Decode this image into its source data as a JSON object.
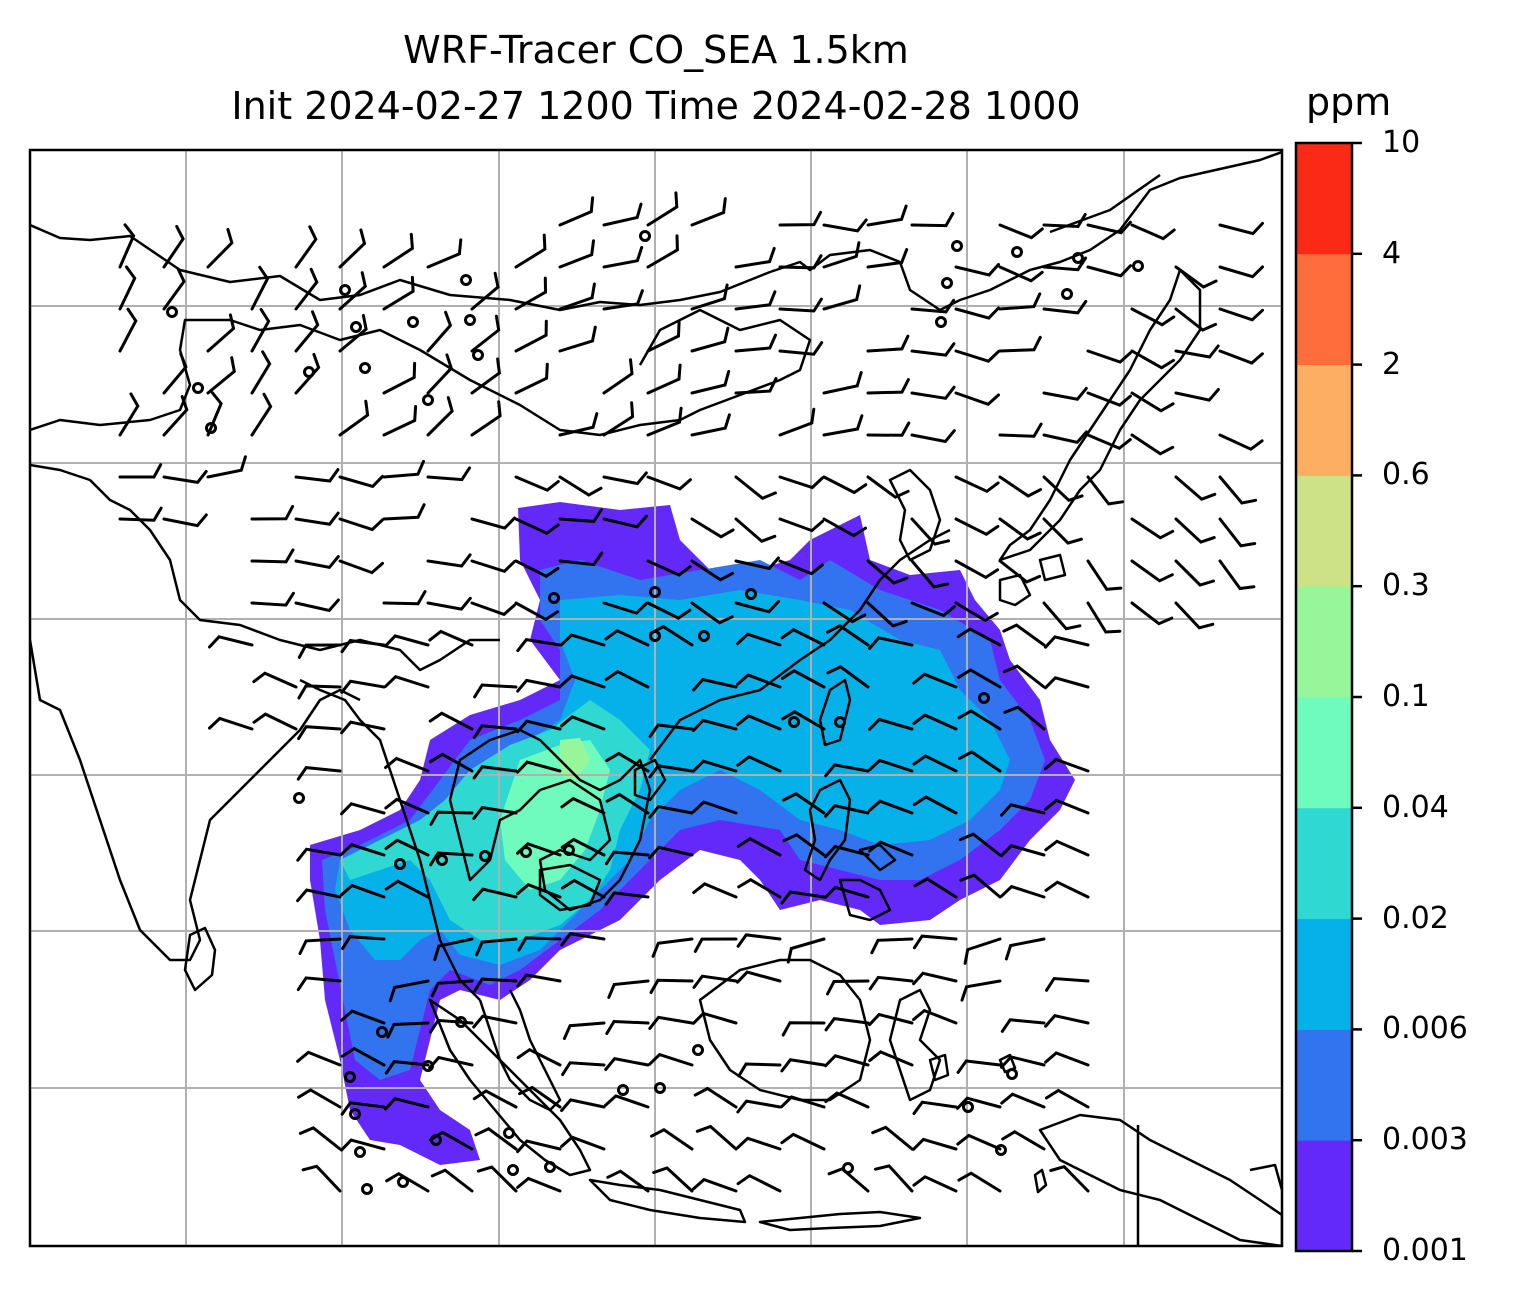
{
  "title": {
    "line1": "WRF-Tracer CO_SEA 1.5km",
    "line2": "Init 2024-02-27 1200 Time 2024-02-28 1000"
  },
  "colorbar": {
    "unit": "ppm",
    "levels": [
      "0.001",
      "0.003",
      "0.006",
      "0.02",
      "0.04",
      "0.1",
      "0.3",
      "0.6",
      "2",
      "4",
      "10"
    ],
    "colors": [
      "#6329f9",
      "#3273ef",
      "#05b1e8",
      "#2fd9d2",
      "#6ffbbd",
      "#97f69a",
      "#cde186",
      "#fdae62",
      "#fd6e3c",
      "#fb2a16"
    ]
  },
  "map": {
    "field": "CO_SEA tracer",
    "grid_lines": true,
    "colors": {
      "grid": "#b0b0b0",
      "coastline": "#000000",
      "barb": "#000000"
    }
  }
}
